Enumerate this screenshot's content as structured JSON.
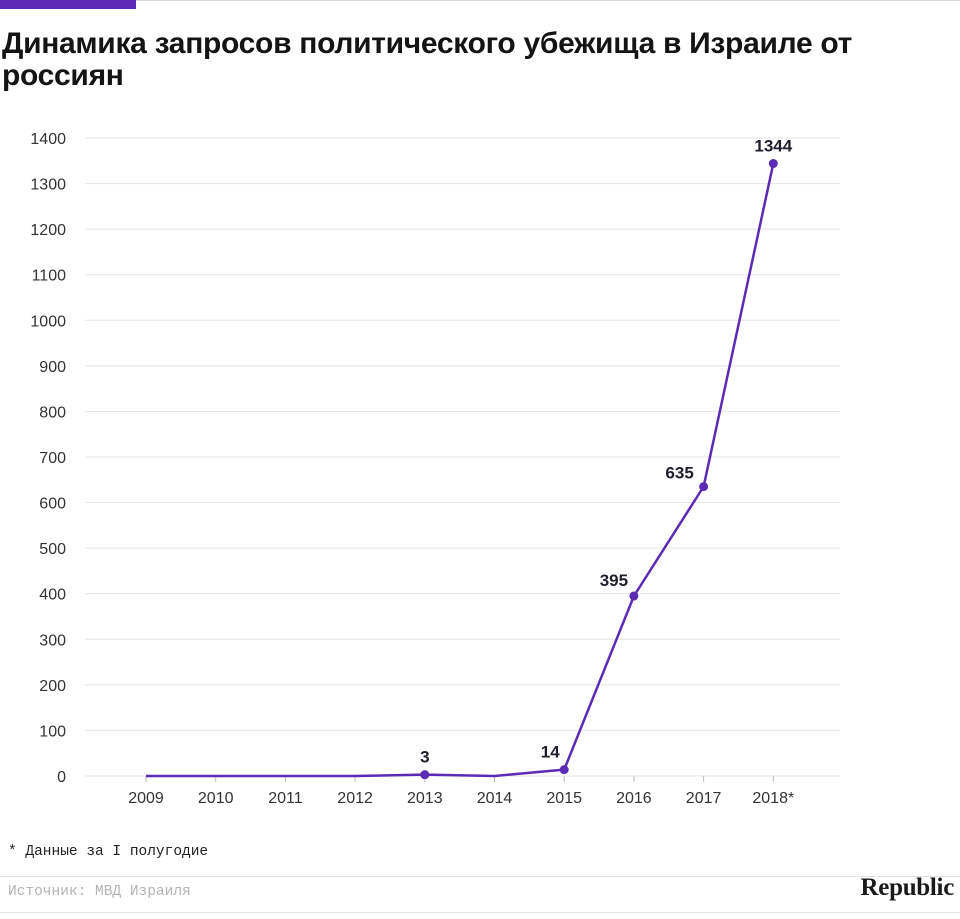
{
  "header": {
    "title": "Динамика запросов политического убежища в Израиле от россиян",
    "accent_color": "#5b2bb5"
  },
  "chart_data": {
    "type": "line",
    "title": "Динамика запросов политического убежища в Израиле от россиян",
    "xlabel": "",
    "ylabel": "",
    "categories": [
      "2009",
      "2010",
      "2011",
      "2012",
      "2013",
      "2014",
      "2015",
      "2016",
      "2017",
      "2018*"
    ],
    "series": [
      {
        "name": "",
        "values": [
          0,
          0,
          0,
          0,
          3,
          0,
          14,
          395,
          635,
          1344
        ],
        "labels": [
          "",
          "",
          "",
          "",
          "3",
          "",
          "14",
          "395",
          "635",
          "1344"
        ],
        "color": "#5b2bb5"
      }
    ],
    "ylim": [
      0,
      1400
    ],
    "yticks": [
      "0",
      "100",
      "200",
      "300",
      "400",
      "500",
      "600",
      "700",
      "800",
      "900",
      "1000",
      "1100",
      "1200",
      "1300",
      "1400"
    ],
    "grid": true,
    "legend": "none"
  },
  "footnote": "* Данные за I полугодие",
  "source": "Источник: МВД Израиля",
  "brand": "Republic"
}
